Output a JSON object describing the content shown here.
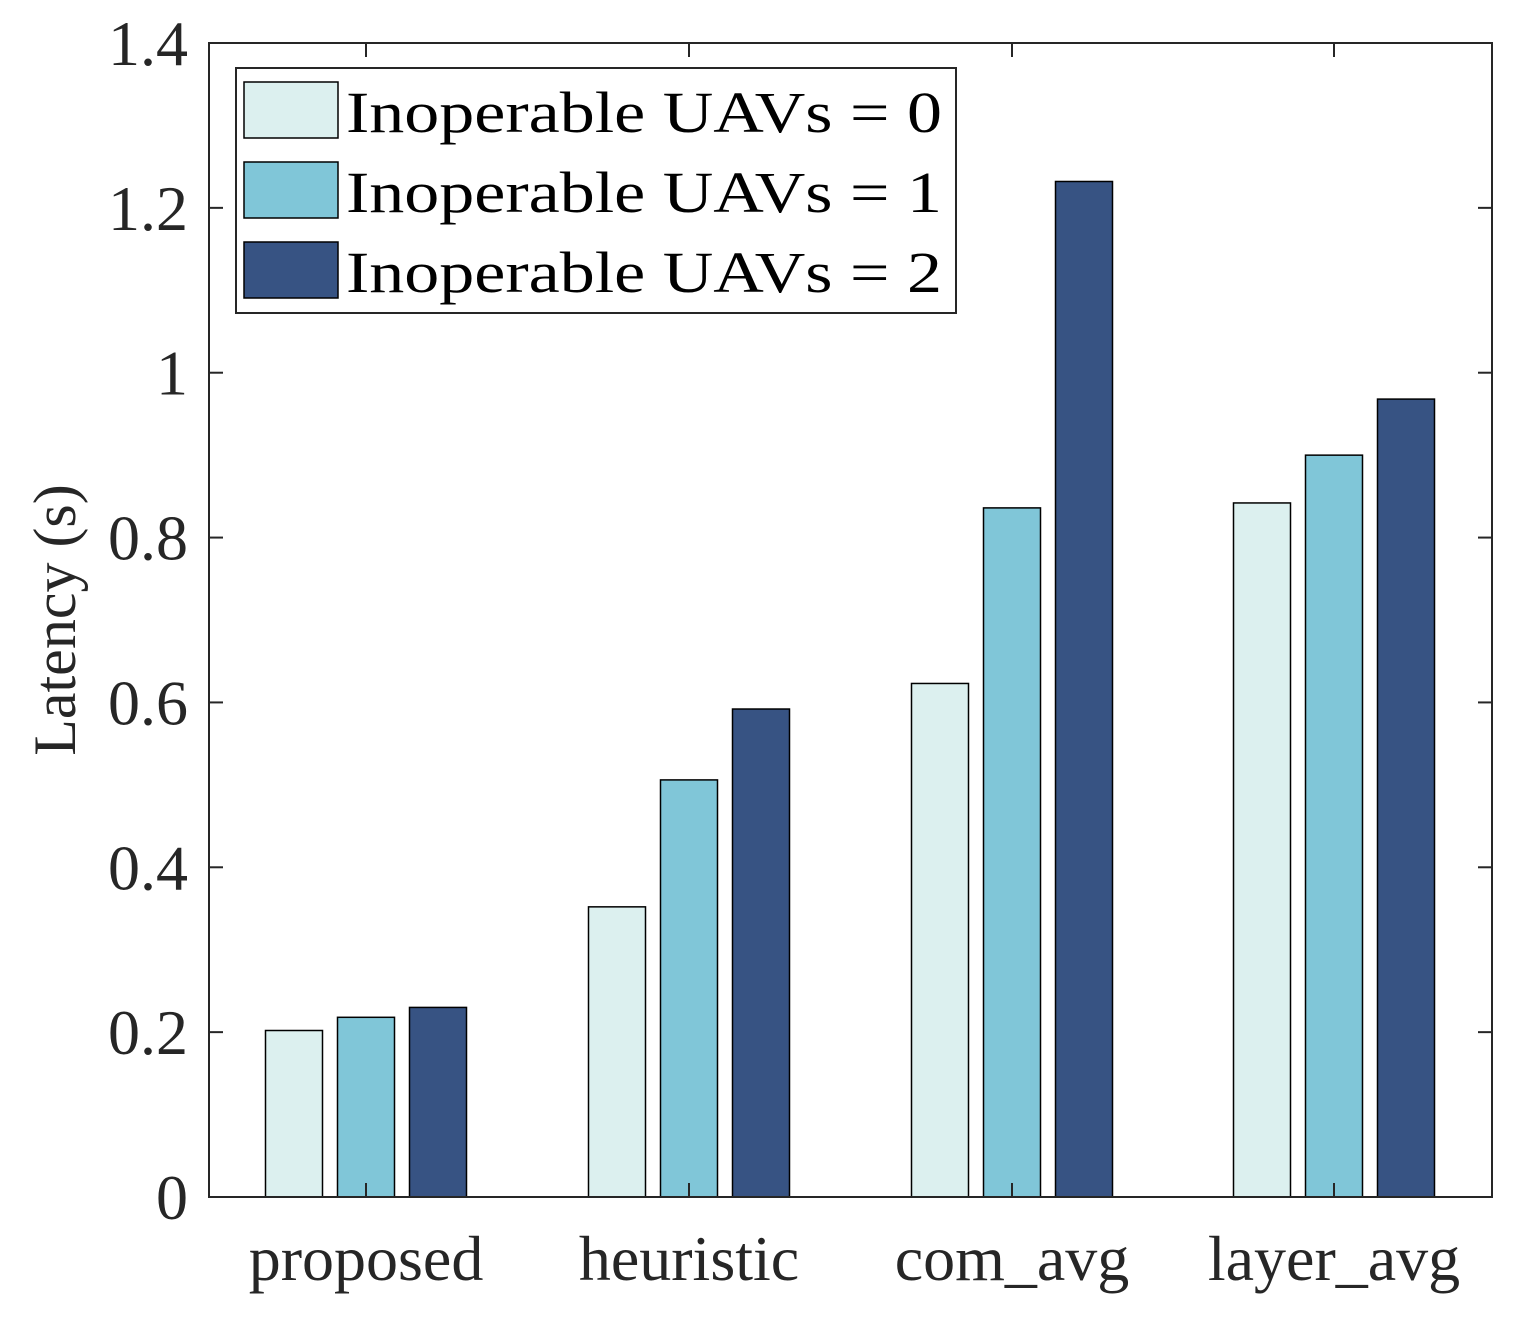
{
  "chart_data": {
    "type": "bar",
    "title": "",
    "xlabel": "",
    "ylabel": "Latency (s)",
    "ylim": [
      0,
      1.4
    ],
    "yticks": [
      0,
      0.2,
      0.4,
      0.6,
      0.8,
      1,
      1.2,
      1.4
    ],
    "ytick_labels": [
      "0",
      "0.2",
      "0.4",
      "0.6",
      "0.8",
      "1",
      "1.2",
      "1.4"
    ],
    "categories": [
      "proposed",
      "heuristic",
      "com_avg",
      "layer_avg"
    ],
    "series": [
      {
        "name": "Inoperable UAVs = 0",
        "color": "#DCF0EF",
        "values": [
          0.202,
          0.352,
          0.623,
          0.842
        ]
      },
      {
        "name": "Inoperable UAVs = 1",
        "color": "#80C6D8",
        "values": [
          0.218,
          0.506,
          0.836,
          0.9
        ]
      },
      {
        "name": "Inoperable UAVs = 2",
        "color": "#375383",
        "values": [
          0.23,
          0.592,
          1.232,
          0.968
        ]
      }
    ],
    "legend_position": "top-left",
    "grid": false
  }
}
